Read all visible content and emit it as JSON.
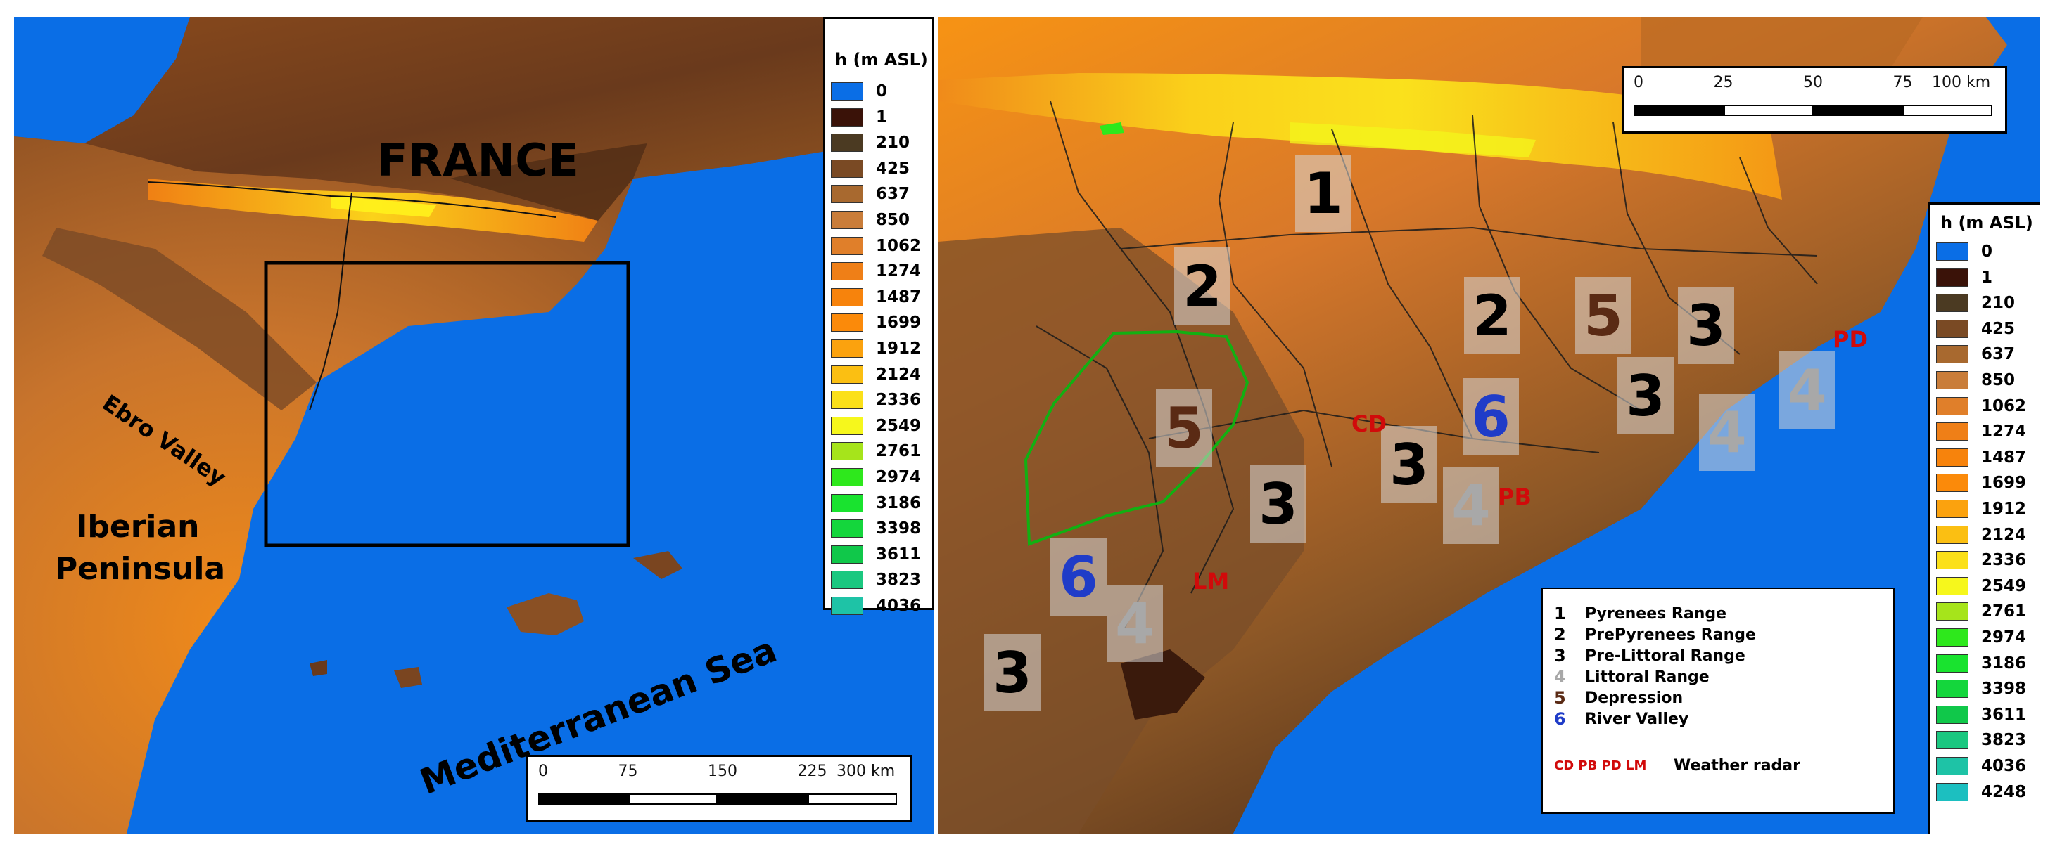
{
  "left_map": {
    "labels": {
      "france": "FRANCE",
      "ebro_valley": "Ebro Valley",
      "iberian_line1": "Iberian",
      "iberian_line2": "Peninsula",
      "sea": "Mediterranean Sea"
    },
    "legend": {
      "title": "h (m ASL)",
      "entries": [
        {
          "label": "0",
          "color": "#0a6ee6"
        },
        {
          "label": "1",
          "color": "#3a1208"
        },
        {
          "label": "210",
          "color": "#4b3a22"
        },
        {
          "label": "425",
          "color": "#7a4a24"
        },
        {
          "label": "637",
          "color": "#a8692f"
        },
        {
          "label": "850",
          "color": "#c97d3a"
        },
        {
          "label": "1062",
          "color": "#e07f2a"
        },
        {
          "label": "1274",
          "color": "#ef7f17"
        },
        {
          "label": "1487",
          "color": "#f7830c"
        },
        {
          "label": "1699",
          "color": "#fb8a0a"
        },
        {
          "label": "1912",
          "color": "#fba20e"
        },
        {
          "label": "2124",
          "color": "#fbbf12"
        },
        {
          "label": "2336",
          "color": "#fbe019"
        },
        {
          "label": "2549",
          "color": "#f6f71c"
        },
        {
          "label": "2761",
          "color": "#a6e41b"
        },
        {
          "label": "2974",
          "color": "#2ee81c"
        },
        {
          "label": "3186",
          "color": "#19e32f"
        },
        {
          "label": "3398",
          "color": "#14d63c"
        },
        {
          "label": "3611",
          "color": "#10c84a"
        },
        {
          "label": "3823",
          "color": "#1bc880"
        },
        {
          "label": "4036",
          "color": "#1ec3a6"
        }
      ]
    },
    "scale": {
      "ticks": [
        "0",
        "75",
        "150",
        "225",
        "300 km"
      ]
    }
  },
  "right_map": {
    "zones": [
      {
        "num": "1",
        "color": "#000000"
      },
      {
        "num": "2",
        "color": "#000000"
      },
      {
        "num": "2",
        "color": "#000000"
      },
      {
        "num": "5",
        "color": "#5a2a14"
      },
      {
        "num": "3",
        "color": "#000000"
      },
      {
        "num": "3",
        "color": "#000000"
      },
      {
        "num": "4",
        "color": "#a8a8a8"
      },
      {
        "num": "4",
        "color": "#a8a8a8"
      },
      {
        "num": "5",
        "color": "#5a2a14"
      },
      {
        "num": "6",
        "color": "#1f3cc8"
      },
      {
        "num": "3",
        "color": "#000000"
      },
      {
        "num": "4",
        "color": "#a8a8a8"
      },
      {
        "num": "3",
        "color": "#000000"
      },
      {
        "num": "6",
        "color": "#1f3cc8"
      },
      {
        "num": "4",
        "color": "#a8a8a8"
      },
      {
        "num": "3",
        "color": "#000000"
      }
    ],
    "radars": [
      "PD",
      "CD",
      "PB",
      "LM"
    ],
    "key": {
      "entries": [
        {
          "num": "1",
          "label": "Pyrenees Range",
          "color": "#000000"
        },
        {
          "num": "2",
          "label": "PrePyrenees Range",
          "color": "#000000"
        },
        {
          "num": "3",
          "label": "Pre-Littoral Range",
          "color": "#000000"
        },
        {
          "num": "4",
          "label": "Littoral Range",
          "color": "#a8a8a8"
        },
        {
          "num": "5",
          "label": "Depression",
          "color": "#5a2a14"
        },
        {
          "num": "6",
          "label": "River Valley",
          "color": "#1f3cc8"
        }
      ],
      "radar_codes": "CD PB PD LM",
      "radar_label": "Weather radar"
    },
    "scale": {
      "ticks": [
        "0",
        "25",
        "50",
        "75",
        "100 km"
      ]
    },
    "legend": {
      "title": "h (m ASL)",
      "entries": [
        {
          "label": "0",
          "color": "#0a6ee6"
        },
        {
          "label": "1",
          "color": "#3a1208"
        },
        {
          "label": "210",
          "color": "#4b3a22"
        },
        {
          "label": "425",
          "color": "#7a4a24"
        },
        {
          "label": "637",
          "color": "#a8692f"
        },
        {
          "label": "850",
          "color": "#c97d3a"
        },
        {
          "label": "1062",
          "color": "#e07f2a"
        },
        {
          "label": "1274",
          "color": "#ef7f17"
        },
        {
          "label": "1487",
          "color": "#f7830c"
        },
        {
          "label": "1699",
          "color": "#fb8a0a"
        },
        {
          "label": "1912",
          "color": "#fba20e"
        },
        {
          "label": "2124",
          "color": "#fbbf12"
        },
        {
          "label": "2336",
          "color": "#fbe019"
        },
        {
          "label": "2549",
          "color": "#f6f71c"
        },
        {
          "label": "2761",
          "color": "#a6e41b"
        },
        {
          "label": "2974",
          "color": "#2ee81c"
        },
        {
          "label": "3186",
          "color": "#19e32f"
        },
        {
          "label": "3398",
          "color": "#14d63c"
        },
        {
          "label": "3611",
          "color": "#10c84a"
        },
        {
          "label": "3823",
          "color": "#1bc880"
        },
        {
          "label": "4036",
          "color": "#1ec3a6"
        },
        {
          "label": "4248",
          "color": "#1cbfc0"
        }
      ]
    }
  }
}
